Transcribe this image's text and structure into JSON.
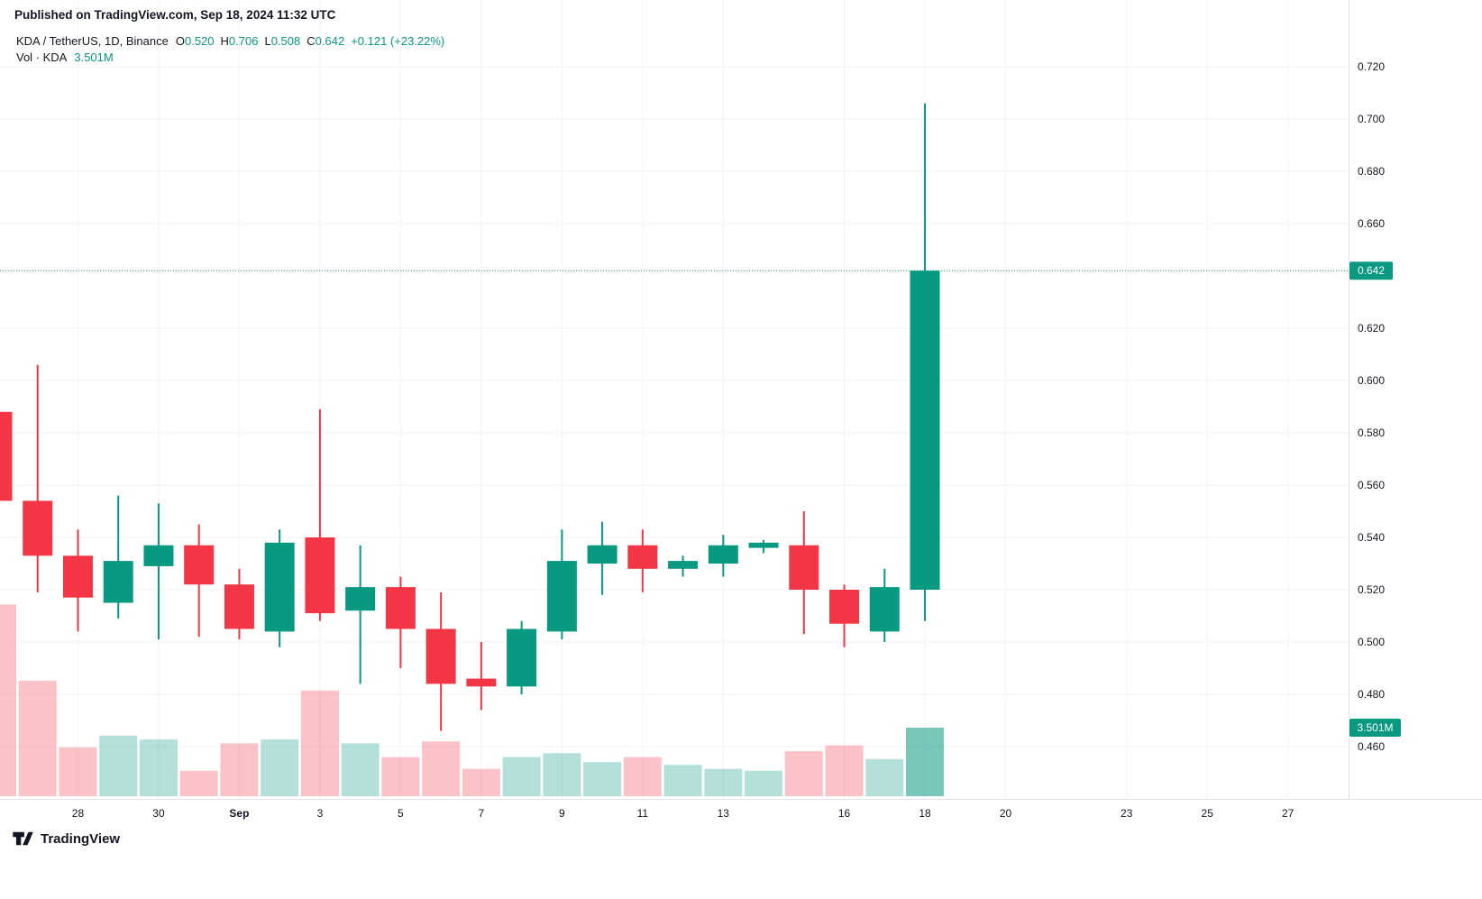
{
  "page": {
    "published_line": "Published on TradingView.com, Sep 18, 2024 11:32 UTC",
    "brand": "TradingView"
  },
  "legend": {
    "symbol_line": "KDA / TetherUS, 1D, Binance",
    "o_label": "O",
    "o_value": "0.520",
    "h_label": "H",
    "h_value": "0.706",
    "l_label": "L",
    "l_value": "0.508",
    "c_label": "C",
    "c_value": "0.642",
    "change_value": "+0.121 (+23.22%)",
    "volume_label": "Vol · KDA",
    "volume_value": "3.501M"
  },
  "colors": {
    "up": "#089981",
    "down": "#f23645",
    "volume_up": "rgba(8,153,129,0.30)",
    "volume_down": "rgba(242,54,69,0.30)",
    "volume_last": "rgba(8,153,129,0.55)",
    "grid": "#f0f3fa",
    "axis_line": "#e0e3eb",
    "axis_text": "#131722",
    "badge_bg": "#089981",
    "badge_text": "#ffffff"
  },
  "chart_data": {
    "type": "candlestick",
    "title": "KDA / TetherUS, 1D, Binance",
    "visible_price_range": [
      0.46,
      0.72
    ],
    "price_axis_ticks": [
      "0.720",
      "0.700",
      "0.680",
      "0.660",
      "0.620",
      "0.600",
      "0.580",
      "0.560",
      "0.540",
      "0.520",
      "0.500",
      "0.480",
      "0.460"
    ],
    "x_ticks": [
      {
        "label": "28",
        "index": 2
      },
      {
        "label": "30",
        "index": 4
      },
      {
        "label": "Sep",
        "index": 6
      },
      {
        "label": "3",
        "index": 8
      },
      {
        "label": "5",
        "index": 10
      },
      {
        "label": "7",
        "index": 12
      },
      {
        "label": "9",
        "index": 14
      },
      {
        "label": "11",
        "index": 16
      },
      {
        "label": "13",
        "index": 18
      },
      {
        "label": "16",
        "index": 21
      },
      {
        "label": "18",
        "index": 23
      },
      {
        "label": "20",
        "index": 25
      },
      {
        "label": "23",
        "index": 28
      },
      {
        "label": "25",
        "index": 30
      },
      {
        "label": "27",
        "index": 32
      }
    ],
    "candles": [
      {
        "date": "Aug 26",
        "open": 0.588,
        "high": 0.592,
        "low": 0.552,
        "close": 0.554,
        "volume_m": 9.8
      },
      {
        "date": "Aug 27",
        "open": 0.554,
        "high": 0.606,
        "low": 0.519,
        "close": 0.533,
        "volume_m": 5.9
      },
      {
        "date": "Aug 28",
        "open": 0.533,
        "high": 0.543,
        "low": 0.504,
        "close": 0.517,
        "volume_m": 2.5
      },
      {
        "date": "Aug 29",
        "open": 0.515,
        "high": 0.556,
        "low": 0.509,
        "close": 0.531,
        "volume_m": 3.1
      },
      {
        "date": "Aug 30",
        "open": 0.529,
        "high": 0.553,
        "low": 0.501,
        "close": 0.537,
        "volume_m": 2.9
      },
      {
        "date": "Aug 31",
        "open": 0.537,
        "high": 0.545,
        "low": 0.502,
        "close": 0.522,
        "volume_m": 1.3
      },
      {
        "date": "Sep 1",
        "open": 0.522,
        "high": 0.528,
        "low": 0.501,
        "close": 0.505,
        "volume_m": 2.7
      },
      {
        "date": "Sep 2",
        "open": 0.504,
        "high": 0.543,
        "low": 0.498,
        "close": 0.538,
        "volume_m": 2.9
      },
      {
        "date": "Sep 3",
        "open": 0.54,
        "high": 0.589,
        "low": 0.508,
        "close": 0.511,
        "volume_m": 5.4
      },
      {
        "date": "Sep 4",
        "open": 0.512,
        "high": 0.537,
        "low": 0.484,
        "close": 0.521,
        "volume_m": 2.7
      },
      {
        "date": "Sep 5",
        "open": 0.521,
        "high": 0.525,
        "low": 0.49,
        "close": 0.505,
        "volume_m": 2.0
      },
      {
        "date": "Sep 6",
        "open": 0.505,
        "high": 0.519,
        "low": 0.466,
        "close": 0.484,
        "volume_m": 2.8
      },
      {
        "date": "Sep 7",
        "open": 0.486,
        "high": 0.5,
        "low": 0.474,
        "close": 0.483,
        "volume_m": 1.4
      },
      {
        "date": "Sep 8",
        "open": 0.483,
        "high": 0.508,
        "low": 0.48,
        "close": 0.505,
        "volume_m": 2.0
      },
      {
        "date": "Sep 9",
        "open": 0.504,
        "high": 0.543,
        "low": 0.501,
        "close": 0.531,
        "volume_m": 2.2
      },
      {
        "date": "Sep 10",
        "open": 0.53,
        "high": 0.546,
        "low": 0.518,
        "close": 0.537,
        "volume_m": 1.75
      },
      {
        "date": "Sep 11",
        "open": 0.537,
        "high": 0.543,
        "low": 0.519,
        "close": 0.528,
        "volume_m": 2.0
      },
      {
        "date": "Sep 12",
        "open": 0.528,
        "high": 0.533,
        "low": 0.525,
        "close": 0.531,
        "volume_m": 1.6
      },
      {
        "date": "Sep 13",
        "open": 0.53,
        "high": 0.541,
        "low": 0.525,
        "close": 0.537,
        "volume_m": 1.4
      },
      {
        "date": "Sep 14",
        "open": 0.536,
        "high": 0.539,
        "low": 0.534,
        "close": 0.538,
        "volume_m": 1.3
      },
      {
        "date": "Sep 15",
        "open": 0.537,
        "high": 0.55,
        "low": 0.503,
        "close": 0.52,
        "volume_m": 2.3
      },
      {
        "date": "Sep 16",
        "open": 0.52,
        "high": 0.522,
        "low": 0.498,
        "close": 0.507,
        "volume_m": 2.6
      },
      {
        "date": "Sep 17",
        "open": 0.504,
        "high": 0.528,
        "low": 0.5,
        "close": 0.521,
        "volume_m": 1.9
      },
      {
        "date": "Sep 18",
        "open": 0.52,
        "high": 0.706,
        "low": 0.508,
        "close": 0.642,
        "volume_m": 3.501
      }
    ],
    "last_price": 0.642,
    "last_price_label": "0.642",
    "volume_badge_label": "3.501M"
  }
}
